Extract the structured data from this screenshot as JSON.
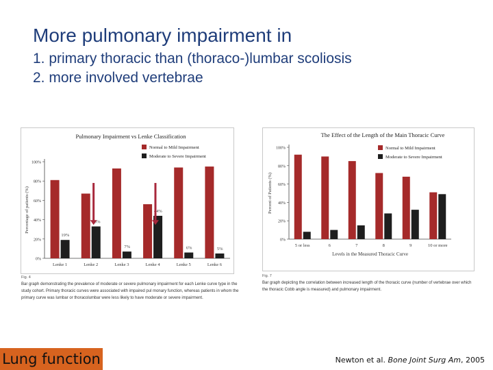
{
  "slide": {
    "title": "More pulmonary impairment in",
    "line1": "1. primary thoracic than (thoraco-)lumbar scoliosis",
    "line2": "2. more involved vertebrae",
    "footer_label": "Lung function",
    "citation_prefix": "Newton et al. ",
    "citation_journal": "Bone Joint Surg Am",
    "citation_suffix": ", 2005"
  },
  "colors": {
    "title": "#1f3d7a",
    "bar_red": "#a52a2a",
    "bar_dark": "#1e1e1e",
    "arrow": "#a8283c",
    "footer_bg": "#d7631f"
  },
  "chart_data": [
    {
      "type": "bar",
      "title": "Pulmonary Impairment vs Lenke Classification",
      "xlabel": "",
      "ylabel": "Percentage of patients (%)",
      "ylim": [
        0,
        100
      ],
      "yticks": [
        "0%",
        "20%",
        "40%",
        "60%",
        "80%",
        "100%"
      ],
      "categories": [
        "Lenke 1",
        "Lenke 2",
        "Lenke 3",
        "Lenke 4",
        "Lenke 5",
        "Lenke 6"
      ],
      "series": [
        {
          "name": "Normal to Mild Impairment",
          "values": [
            81,
            67,
            93,
            56,
            94,
            95
          ]
        },
        {
          "name": "Moderate to Severe Impairment",
          "values": [
            19,
            33,
            7,
            44,
            6,
            5
          ]
        }
      ],
      "data_labels": [
        "19%",
        "33%",
        "7%",
        "44%",
        "6%",
        "5%"
      ],
      "legend": "top-right",
      "grid": false,
      "annotation_arrows_categories": [
        "Lenke 2",
        "Lenke 4"
      ],
      "figure_label": "Fig. 4",
      "caption": "Bar graph demonstrating the prevalence of moderate or severe pulmonary impairment for each Lenke curve type in the study cohort. Primary thoracic curves were associated with impaired pul monary function, whereas patients in whom the primary curve was lumbar or thoracolumbar were less likely to have moderate or severe impairment."
    },
    {
      "type": "bar",
      "title": "The Effect of the Length of the Main Thoracic Curve",
      "xlabel": "Levels in the Measured Thoracic Curve",
      "ylabel": "Percent of Patients (%)",
      "ylim": [
        0,
        100
      ],
      "yticks": [
        "0%",
        "20%",
        "40%",
        "60%",
        "80%",
        "100%"
      ],
      "categories": [
        "5 or less",
        "6",
        "7",
        "8",
        "9",
        "10 or more"
      ],
      "series": [
        {
          "name": "Normal to Mild Impairment",
          "values": [
            92,
            90,
            85,
            72,
            68,
            51
          ]
        },
        {
          "name": "Moderate to Severe Impairment",
          "values": [
            8,
            10,
            15,
            28,
            32,
            49
          ]
        }
      ],
      "legend": "top-right",
      "grid": false,
      "figure_label": "Fig. 7",
      "caption": "Bar graph depicting the correlation between increased length of the thoracic curve (number of vertebrae over which the thoracic Cobb angle is measured) and pulmonary impairment."
    }
  ]
}
